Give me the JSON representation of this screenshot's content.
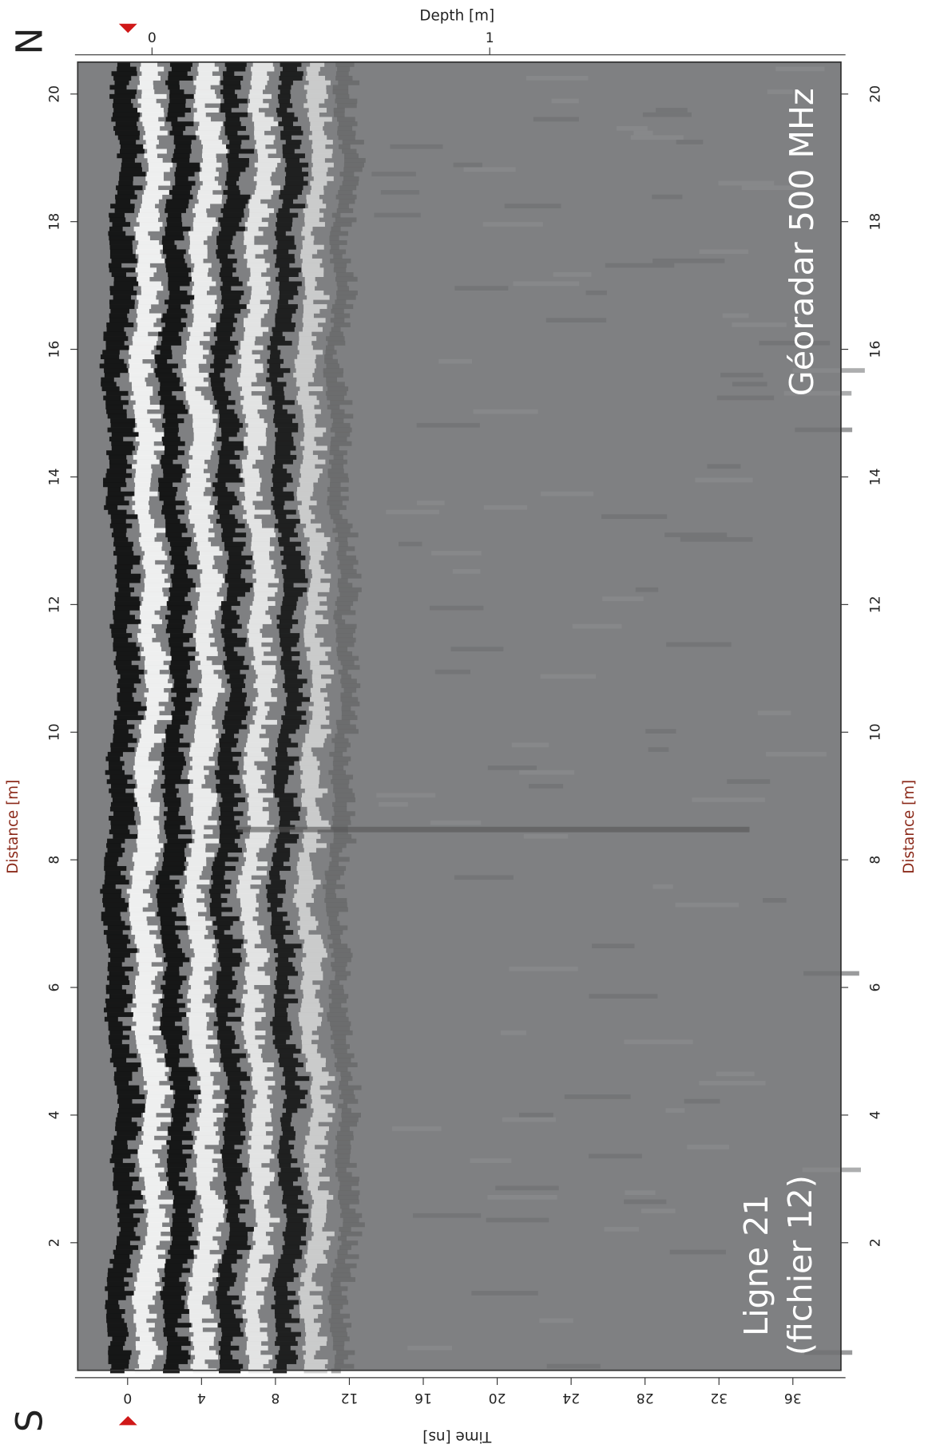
{
  "chart_data": {
    "type": "radargram",
    "north_label": "N",
    "south_label": "S",
    "instrument": "Géoradar 500 MHz",
    "line_label": "Ligne 21",
    "file_label": "(fichier 12)",
    "y_label": "Distance [m]",
    "ylim": [
      0,
      20.5
    ],
    "yticks": [
      2,
      4,
      6,
      8,
      10,
      12,
      14,
      16,
      18,
      20
    ],
    "time_axis": {
      "label": "Time [ns]",
      "lim": [
        -2.7,
        38.6
      ],
      "ticks": [
        0,
        4,
        8,
        12,
        16,
        20,
        24,
        28,
        32,
        36
      ]
    },
    "depth_axis": {
      "label": "Depth [m]",
      "lim": [
        -0.22,
        2.04
      ],
      "ticks": [
        0,
        1
      ]
    }
  }
}
